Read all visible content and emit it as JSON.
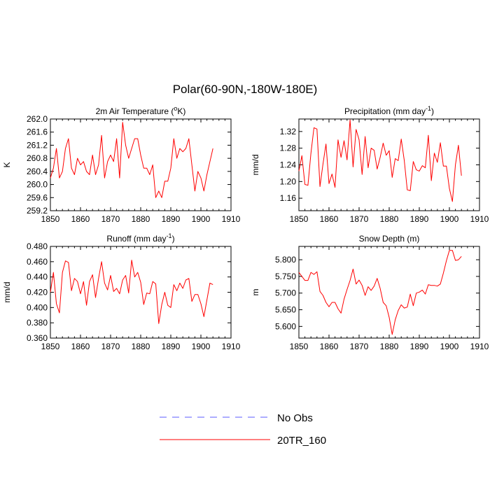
{
  "title": "Polar(60-90N,-180W-180E)",
  "legend": [
    {
      "label": "No Obs",
      "color": "#5b5bff",
      "dash": true
    },
    {
      "label": "20TR_160",
      "color": "#ff0000",
      "dash": false
    }
  ],
  "chart_data": [
    {
      "type": "line",
      "title": "2m Air Temperature (",
      "title_sup": "o",
      "title_end": "K)",
      "ylabel": "K",
      "xlim": [
        1850,
        1910
      ],
      "ylim": [
        259.2,
        262.0
      ],
      "xticks": [
        1850,
        1860,
        1870,
        1880,
        1890,
        1900,
        1910
      ],
      "yticks": [
        259.2,
        259.6,
        260.0,
        260.4,
        260.8,
        261.2,
        261.6,
        262.0
      ],
      "ytick_labels": [
        "259.2",
        "259.6",
        "260.0",
        "260.4",
        "260.8",
        "261.2",
        "261.6",
        "262.0"
      ],
      "x_start": 1850,
      "series": [
        {
          "name": "20TR_160",
          "color": "#ff0000",
          "values": [
            260.2,
            260.5,
            261.1,
            260.2,
            260.4,
            261.1,
            261.4,
            260.5,
            260.3,
            260.8,
            260.6,
            260.7,
            260.4,
            260.3,
            260.9,
            260.3,
            260.6,
            261.5,
            260.2,
            260.7,
            260.9,
            260.7,
            261.4,
            260.2,
            261.9,
            261.2,
            260.8,
            261.1,
            261.4,
            261.4,
            260.9,
            260.5,
            260.5,
            260.3,
            260.6,
            259.6,
            259.8,
            259.6,
            260.1,
            260.1,
            260.5,
            261.4,
            260.8,
            261.1,
            261.0,
            261.1,
            261.4,
            260.6,
            259.8,
            260.4,
            260.2,
            259.8,
            260.3,
            260.7,
            261.1
          ]
        }
      ]
    },
    {
      "type": "line",
      "title": "Precipitation (mm day",
      "title_sup": "-1",
      "title_end": ")",
      "ylabel": "mm/d",
      "xlim": [
        1850,
        1910
      ],
      "ylim": [
        1.13,
        1.35
      ],
      "xticks": [
        1850,
        1860,
        1870,
        1880,
        1890,
        1900,
        1910
      ],
      "yticks": [
        1.16,
        1.2,
        1.24,
        1.28,
        1.32
      ],
      "ytick_labels": [
        "1.16",
        "1.20",
        "1.24",
        "1.28",
        "1.32"
      ],
      "x_start": 1850,
      "series": [
        {
          "name": "20TR_160",
          "color": "#ff0000",
          "values": [
            1.225,
            1.262,
            1.193,
            1.191,
            1.268,
            1.329,
            1.326,
            1.188,
            1.242,
            1.29,
            1.195,
            1.218,
            1.186,
            1.3,
            1.258,
            1.298,
            1.252,
            1.348,
            1.235,
            1.325,
            1.3,
            1.217,
            1.308,
            1.233,
            1.28,
            1.275,
            1.23,
            1.258,
            1.292,
            1.263,
            1.274,
            1.21,
            1.255,
            1.25,
            1.302,
            1.251,
            1.18,
            1.178,
            1.248,
            1.228,
            1.225,
            1.238,
            1.233,
            1.311,
            1.202,
            1.268,
            1.246,
            1.293,
            1.237,
            1.237,
            1.183,
            1.152,
            1.24,
            1.287,
            1.214
          ]
        }
      ]
    },
    {
      "type": "line",
      "title": "Runoff (mm day",
      "title_sup": "-1",
      "title_end": ")",
      "ylabel": "mm/d",
      "xlim": [
        1850,
        1910
      ],
      "ylim": [
        0.36,
        0.48
      ],
      "xticks": [
        1850,
        1860,
        1870,
        1880,
        1890,
        1900,
        1910
      ],
      "yticks": [
        0.36,
        0.38,
        0.4,
        0.42,
        0.44,
        0.46,
        0.48
      ],
      "ytick_labels": [
        "0.360",
        "0.380",
        "0.400",
        "0.420",
        "0.440",
        "0.460",
        "0.480"
      ],
      "x_start": 1850,
      "series": [
        {
          "name": "20TR_160",
          "color": "#ff0000",
          "values": [
            0.42,
            0.446,
            0.405,
            0.393,
            0.446,
            0.461,
            0.459,
            0.422,
            0.438,
            0.434,
            0.418,
            0.434,
            0.403,
            0.434,
            0.443,
            0.413,
            0.438,
            0.46,
            0.432,
            0.423,
            0.442,
            0.421,
            0.425,
            0.418,
            0.436,
            0.442,
            0.419,
            0.462,
            0.44,
            0.446,
            0.433,
            0.404,
            0.419,
            0.418,
            0.434,
            0.431,
            0.379,
            0.404,
            0.42,
            0.403,
            0.4,
            0.43,
            0.422,
            0.432,
            0.425,
            0.436,
            0.438,
            0.408,
            0.417,
            0.417,
            0.405,
            0.388,
            0.41,
            0.432,
            0.43
          ]
        }
      ]
    },
    {
      "type": "line",
      "title": "Snow Depth (m)",
      "title_sup": "",
      "title_end": "",
      "ylabel": "m",
      "xlim": [
        1850,
        1910
      ],
      "ylim": [
        5.565,
        5.84
      ],
      "xticks": [
        1850,
        1860,
        1870,
        1880,
        1890,
        1900,
        1910
      ],
      "yticks": [
        5.6,
        5.65,
        5.7,
        5.75,
        5.8
      ],
      "ytick_labels": [
        "5.600",
        "5.650",
        "5.700",
        "5.750",
        "5.800"
      ],
      "x_start": 1850,
      "series": [
        {
          "name": "20TR_160",
          "color": "#ff0000",
          "values": [
            5.762,
            5.75,
            5.738,
            5.738,
            5.762,
            5.756,
            5.764,
            5.705,
            5.693,
            5.672,
            5.659,
            5.672,
            5.672,
            5.653,
            5.64,
            5.682,
            5.711,
            5.738,
            5.772,
            5.727,
            5.739,
            5.723,
            5.693,
            5.719,
            5.708,
            5.721,
            5.744,
            5.714,
            5.672,
            5.662,
            5.627,
            5.576,
            5.62,
            5.648,
            5.665,
            5.655,
            5.658,
            5.697,
            5.662,
            5.7,
            5.703,
            5.709,
            5.697,
            5.725,
            5.723,
            5.723,
            5.721,
            5.727,
            5.76,
            5.797,
            5.828,
            5.828,
            5.798,
            5.8,
            5.81
          ]
        }
      ]
    }
  ]
}
